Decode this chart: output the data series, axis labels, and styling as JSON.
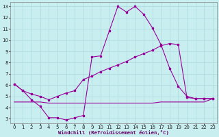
{
  "xlabel": "Windchill (Refroidissement éolien,°C)",
  "background_color": "#c8eef0",
  "grid_color": "#b0dde0",
  "line_color": "#990099",
  "xlim_min": -0.5,
  "xlim_max": 23.5,
  "ylim_min": 2.6,
  "ylim_max": 13.4,
  "xticks": [
    0,
    1,
    2,
    3,
    4,
    5,
    6,
    7,
    8,
    9,
    10,
    11,
    12,
    13,
    14,
    15,
    16,
    17,
    18,
    19,
    20,
    21,
    22,
    23
  ],
  "yticks": [
    3,
    4,
    5,
    6,
    7,
    8,
    9,
    10,
    11,
    12,
    13
  ],
  "line1_x": [
    0,
    1,
    2,
    3,
    4,
    5,
    6,
    7,
    8,
    9,
    10,
    11,
    12,
    13,
    14,
    15,
    16,
    17,
    18,
    19,
    20,
    21,
    22,
    23
  ],
  "line1_y": [
    6.1,
    5.5,
    4.7,
    4.1,
    3.1,
    3.1,
    2.9,
    3.1,
    3.3,
    8.5,
    8.6,
    10.8,
    13.0,
    12.5,
    13.0,
    12.3,
    11.1,
    9.6,
    7.5,
    5.9,
    5.0,
    4.8,
    4.8,
    4.8
  ],
  "line2_x": [
    0,
    1,
    2,
    3,
    4,
    5,
    6,
    7,
    8,
    9,
    10,
    11,
    12,
    13,
    14,
    15,
    16,
    17,
    18,
    19,
    20,
    21,
    22,
    23
  ],
  "line2_y": [
    6.1,
    5.5,
    5.2,
    5.0,
    4.7,
    5.0,
    5.3,
    5.5,
    6.5,
    6.8,
    7.2,
    7.5,
    7.8,
    8.1,
    8.5,
    8.8,
    9.1,
    9.5,
    9.7,
    9.6,
    4.9,
    4.8,
    4.8,
    4.8
  ],
  "line3_x": [
    0,
    1,
    2,
    3,
    4,
    5,
    6,
    7,
    8,
    9,
    10,
    11,
    12,
    13,
    14,
    15,
    16,
    17,
    18,
    19,
    20,
    21,
    22,
    23
  ],
  "line3_y": [
    4.5,
    4.5,
    4.5,
    4.5,
    4.4,
    4.4,
    4.4,
    4.4,
    4.4,
    4.4,
    4.4,
    4.4,
    4.4,
    4.4,
    4.4,
    4.4,
    4.4,
    4.5,
    4.5,
    4.5,
    4.5,
    4.5,
    4.5,
    4.8
  ]
}
